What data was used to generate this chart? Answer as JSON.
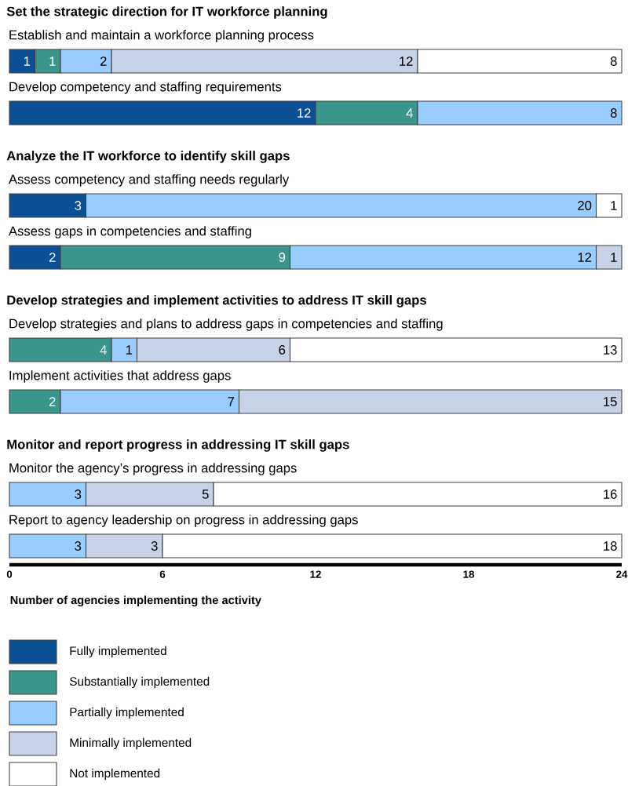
{
  "chart_data": {
    "type": "bar",
    "orientation": "horizontal",
    "stacked": true,
    "data_labels": true,
    "legend": "bottom",
    "xlabel": "Number of agencies implementing the activity",
    "annotations": [
      "Set the strategic direction for IT workforce planning",
      "Analyze the IT workforce to identify skill gaps",
      "Develop strategies and implement activities to address IT skill gaps",
      "Monitor and report progress in addressing IT skill gaps"
    ],
    "categories": [
      "Establish and maintain a workforce planning process",
      "Develop competency and staffing requirements",
      "Assess competency and staffing needs regularly",
      "Assess gaps in competencies and staffing",
      "Develop strategies and plans to address gaps in competencies and staffing",
      "Implement activities that address gaps",
      "Monitor the agency’s progress in addressing gaps",
      "Report to agency leadership on progress in addressing gaps"
    ],
    "xlim": [
      0,
      24
    ],
    "xticks": [
      0,
      6,
      12,
      18,
      24
    ],
    "series": [
      {
        "name": "Fully implemented",
        "color": "#0b4f94",
        "values": [
          1,
          12,
          3,
          2,
          null,
          null,
          null,
          null
        ]
      },
      {
        "name": "Substantially implemented",
        "color": "#3a968b",
        "values": [
          1,
          4,
          null,
          9,
          4,
          2,
          null,
          null
        ]
      },
      {
        "name": "Partially implemented",
        "color": "#99ccff",
        "values": [
          2,
          8,
          20,
          12,
          1,
          7,
          3,
          3
        ]
      },
      {
        "name": "Minimally implemented",
        "color": "#c8d2e6",
        "values": [
          12,
          null,
          null,
          1,
          6,
          15,
          5,
          3
        ]
      },
      {
        "name": "Not implemented",
        "color": "#ffffff",
        "values": [
          8,
          null,
          1,
          null,
          13,
          null,
          16,
          18
        ]
      }
    ]
  }
}
